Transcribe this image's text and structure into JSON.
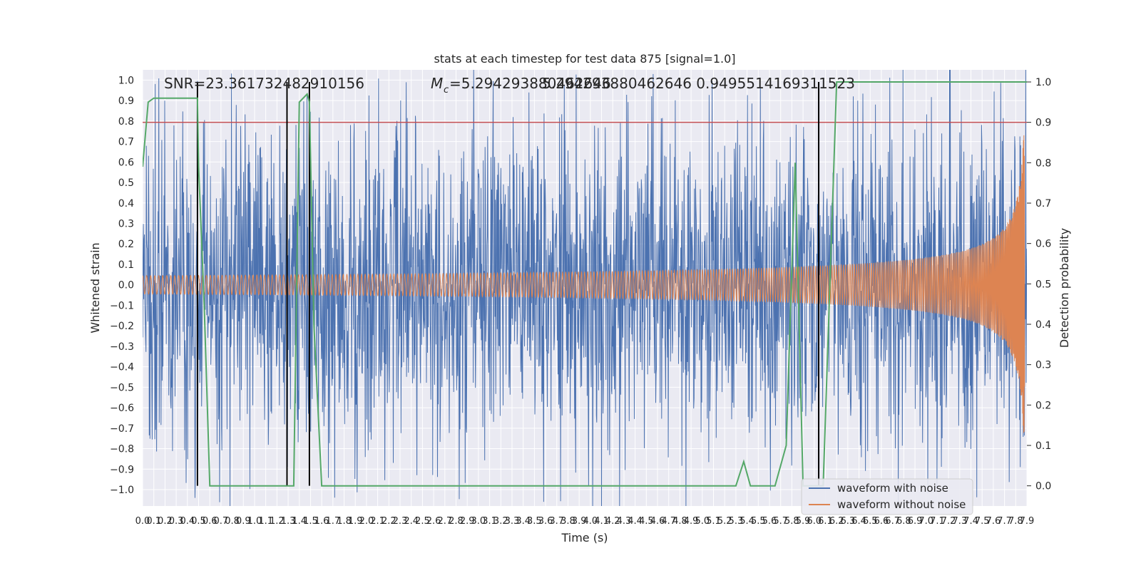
{
  "chart_data": {
    "type": "line",
    "title": "stats at each timestep for test data 875 [signal=1.0]",
    "xlabel": "Time (s)",
    "ylabel_left": "Whitened strain",
    "ylabel_right": "Detection probability",
    "xlim": [
      0.0,
      7.9
    ],
    "ylim_left": [
      -1.08,
      1.05
    ],
    "ylim_right": [
      -0.05,
      1.03
    ],
    "x_ticks": [
      "0.0",
      "0.1",
      "0.2",
      "0.3",
      "0.4",
      "0.5",
      "0.6",
      "0.7",
      "0.8",
      "0.9",
      "1.0",
      "1.1",
      "1.2",
      "1.3",
      "1.4",
      "1.5",
      "1.6",
      "1.7",
      "1.8",
      "1.9",
      "2.0",
      "2.1",
      "2.2",
      "2.3",
      "2.4",
      "2.5",
      "2.6",
      "2.7",
      "2.8",
      "2.9",
      "3.0",
      "3.1",
      "3.2",
      "3.3",
      "3.4",
      "3.5",
      "3.6",
      "3.7",
      "3.8",
      "3.9",
      "4.0",
      "4.1",
      "4.2",
      "4.3",
      "4.4",
      "4.5",
      "4.6",
      "4.7",
      "4.8",
      "4.9",
      "5.0",
      "5.1",
      "5.2",
      "5.3",
      "5.4",
      "5.5",
      "5.6",
      "5.7",
      "5.8",
      "5.9",
      "6.0",
      "6.1",
      "6.2",
      "6.3",
      "6.4",
      "6.5",
      "6.6",
      "6.7",
      "6.8",
      "6.9",
      "7.0",
      "7.1",
      "7.2",
      "7.3",
      "7.4",
      "7.5",
      "7.6",
      "7.7",
      "7.8",
      "7.9"
    ],
    "y_ticks_left": [
      "−1.0",
      "−0.9",
      "−0.8",
      "−0.7",
      "−0.6",
      "−0.5",
      "−0.4",
      "−0.3",
      "−0.2",
      "−0.1",
      "0.0",
      "0.1",
      "0.2",
      "0.3",
      "0.4",
      "0.5",
      "0.6",
      "0.7",
      "0.8",
      "0.9",
      "1.0"
    ],
    "y_ticks_right": [
      "0.0",
      "0.1",
      "0.2",
      "0.3",
      "0.4",
      "0.5",
      "0.6",
      "0.7",
      "0.8",
      "0.9",
      "1.0"
    ],
    "annotations": {
      "snr": "SNR=23.361732482910156",
      "mc_symbol": "M",
      "mc_subscript": "c",
      "mc_value": "=5.294293880462646",
      "mc_overlap": "5.294293880462646 0.9495514169311523"
    },
    "legend": {
      "placement": "lower-right",
      "entries": [
        "waveform with noise",
        "waveform without noise"
      ]
    },
    "threshold_right": 0.9,
    "trigger_times": [
      0.49,
      1.29,
      1.49,
      6.04
    ],
    "series": [
      {
        "name": "waveform with noise",
        "color": "#4c72b0",
        "kind": "noise",
        "amplitude": 0.55,
        "seed": 875
      },
      {
        "name": "waveform without noise",
        "color": "#dd8452",
        "kind": "chirp",
        "duration": 7.9,
        "chirp_cycles": 350,
        "start_amplitude": 0.045,
        "peak_amplitude": 0.9
      },
      {
        "name": "detection probability",
        "color": "#55a868",
        "axis": "right",
        "x": [
          0.0,
          0.05,
          0.1,
          0.49,
          0.5,
          0.55,
          0.6,
          1.2,
          1.24,
          1.29,
          1.35,
          1.4,
          1.47,
          1.49,
          1.53,
          1.6,
          5.2,
          5.3,
          5.37,
          5.43,
          5.48,
          5.65,
          5.75,
          5.83,
          5.9,
          5.97,
          6.04,
          6.08,
          6.2,
          7.9
        ],
        "y": [
          0.79,
          0.95,
          0.96,
          0.96,
          0.79,
          0.45,
          0.0,
          0.0,
          0.0,
          0.0,
          0.0,
          0.95,
          0.97,
          0.95,
          0.4,
          0.0,
          0.0,
          0.0,
          0.06,
          0.0,
          0.0,
          0.0,
          0.1,
          0.8,
          0.0,
          0.0,
          0.0,
          0.0,
          1.0,
          1.0
        ]
      }
    ],
    "colors": {
      "background": "#eaeaf2",
      "grid": "#ffffff",
      "threshold": "#c44e52",
      "trigger": "#000000"
    }
  }
}
